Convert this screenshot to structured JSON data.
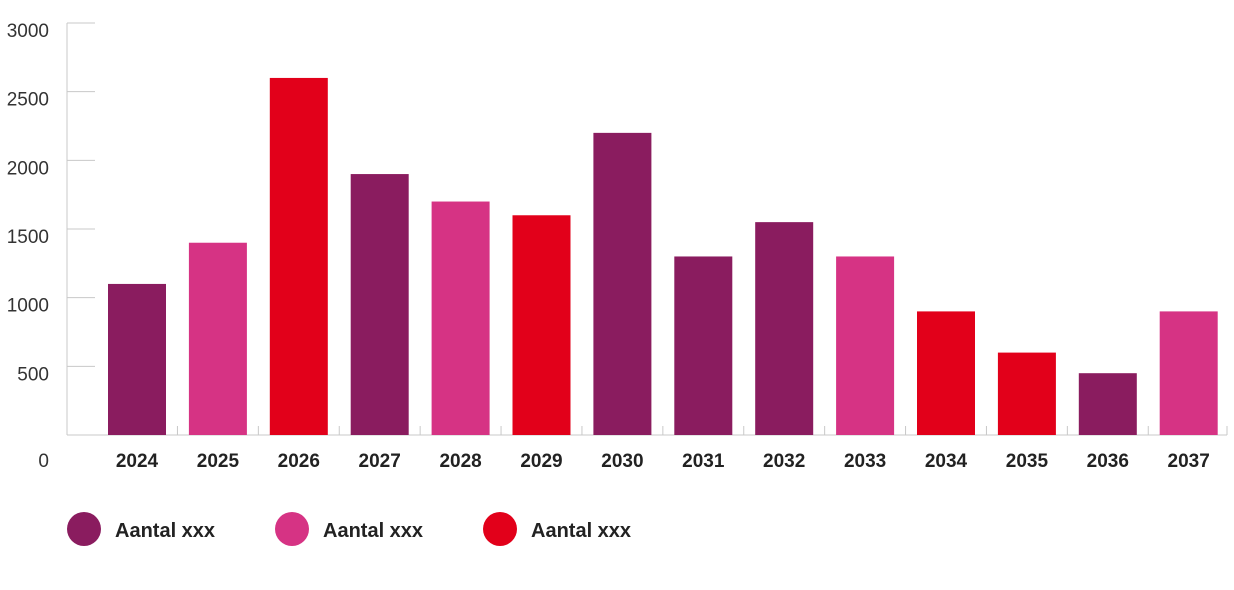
{
  "chart_data": {
    "type": "bar",
    "title": "",
    "xlabel": "",
    "ylabel": "",
    "ylim": [
      0,
      3000
    ],
    "yticks": [
      0,
      500,
      1000,
      1500,
      2000,
      2500,
      3000
    ],
    "grid": false,
    "legend_position": "bottom-left",
    "categories": [
      "2024",
      "2025",
      "2026",
      "2027",
      "2028",
      "2029",
      "2030",
      "2031",
      "2032",
      "2033",
      "2034",
      "2035",
      "2036",
      "2037"
    ],
    "values": [
      1100,
      1400,
      2600,
      1900,
      1700,
      1600,
      2200,
      1300,
      1550,
      1300,
      900,
      600,
      450,
      900
    ],
    "bar_series": [
      0,
      1,
      2,
      0,
      1,
      2,
      0,
      0,
      0,
      1,
      2,
      2,
      0,
      1
    ],
    "series": [
      {
        "name": "Aantal xxx",
        "color": "#8a1c5f"
      },
      {
        "name": "Aantal xxx",
        "color": "#d63384"
      },
      {
        "name": "Aantal xxx",
        "color": "#e2001a"
      }
    ]
  }
}
